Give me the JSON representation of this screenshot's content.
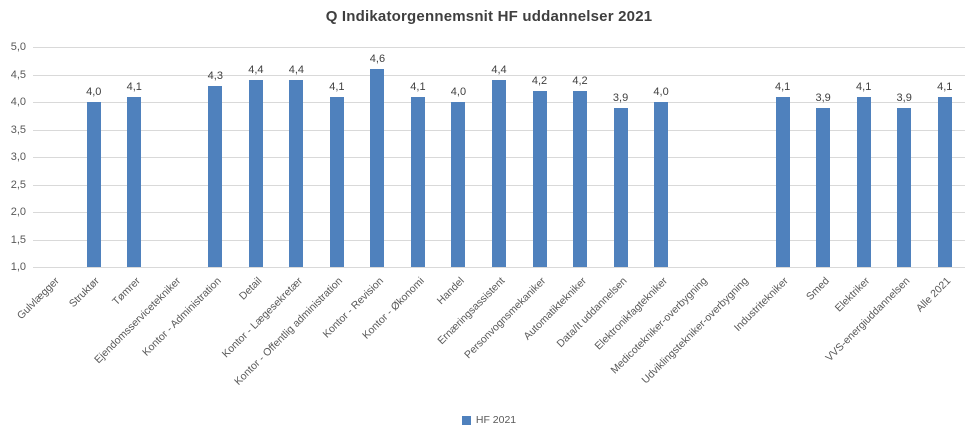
{
  "chart_data": {
    "type": "bar",
    "title": "Q Indikatorgennemsnit HF uddannelser 2021",
    "categories": [
      "Gulvlægger",
      "Struktør",
      "Tømrer",
      "Ejendomsservicetekniker",
      "Kontor - Administration",
      "Detail",
      "Kontor - Lægesekretær",
      "Kontor - Offentlig administration",
      "Kontor - Revision",
      "Kontor - Økonomi",
      "Handel",
      "Ernæringsassistent",
      "Personvognsmekaniker",
      "Automatiktekniker",
      "Data/It uddannelsen",
      "Elektronikfagtekniker",
      "Medicotekniker-overbygning",
      "Udviklingstekniker-overbygning",
      "Industritekniker",
      "Smed",
      "Elektriker",
      "VVS-energiuddannelsen",
      "Alle 2021"
    ],
    "series": [
      {
        "name": "HF 2021",
        "values": [
          null,
          4.0,
          4.1,
          null,
          4.3,
          4.4,
          4.4,
          4.1,
          4.6,
          4.1,
          4.0,
          4.4,
          4.2,
          4.2,
          3.9,
          4.0,
          null,
          null,
          4.1,
          3.9,
          4.1,
          3.9,
          4.1
        ],
        "labels": [
          null,
          "4,0",
          "4,1",
          null,
          "4,3",
          "4,4",
          "4,4",
          "4,1",
          "4,6",
          "4,1",
          "4,0",
          "4,4",
          "4,2",
          "4,2",
          "3,9",
          "4,0",
          null,
          null,
          "4,1",
          "3,9",
          "4,1",
          "3,9",
          "4,1"
        ]
      }
    ],
    "y_axis": {
      "min": 1.0,
      "max": 5.0,
      "step": 0.5,
      "tick_labels_top_down": [
        "5,0",
        "4,5",
        "4,0",
        "3,5",
        "3,0",
        "2,5",
        "2,0",
        "1,5",
        "1,0"
      ]
    },
    "xlabel": "",
    "ylabel": "",
    "grid": true,
    "legend_position": "bottom",
    "legend_entries": [
      "HF 2021"
    ],
    "colors": {
      "bar": "#4f81bd",
      "gridline": "#d9d9d9",
      "axis_text": "#595959",
      "value_text": "#404040",
      "title_text": "#3f3f3f"
    }
  }
}
